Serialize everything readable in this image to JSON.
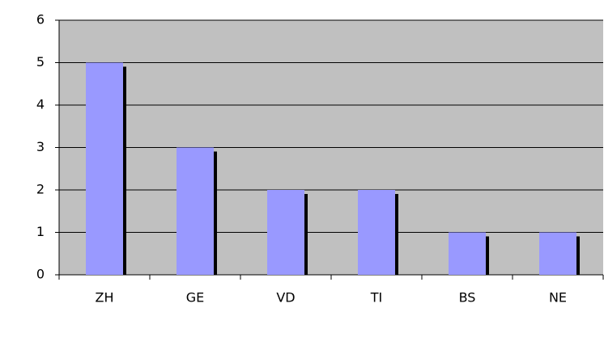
{
  "chart_data": {
    "type": "bar",
    "categories": [
      "ZH",
      "GE",
      "VD",
      "TI",
      "BS",
      "NE"
    ],
    "values": [
      5,
      3,
      2,
      2,
      1,
      1
    ],
    "color": "#9999ff",
    "ylim": [
      0,
      6
    ],
    "yticks": [
      0,
      1,
      2,
      3,
      4,
      5,
      6
    ],
    "grid": true
  }
}
